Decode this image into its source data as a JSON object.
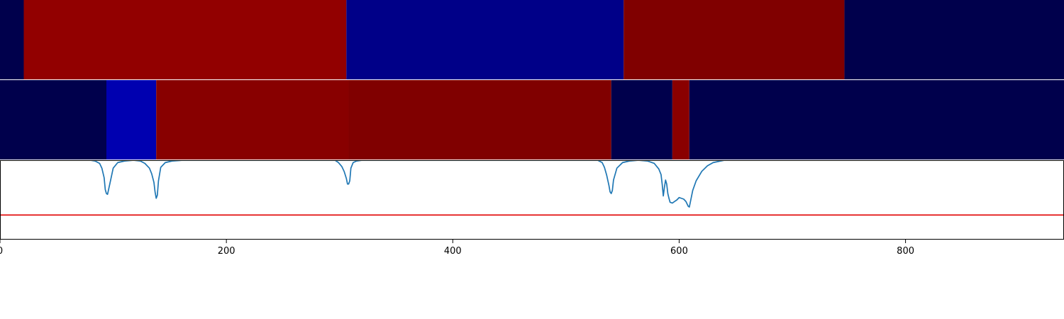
{
  "chart_data": [
    {
      "type": "heatmap",
      "subtype": "segment-band",
      "xlim": [
        0,
        940
      ],
      "segments": [
        {
          "start": 0,
          "end": 21,
          "color": "#00004c"
        },
        {
          "start": 21,
          "end": 306,
          "color": "#920000"
        },
        {
          "start": 306,
          "end": 551,
          "color": "#000088"
        },
        {
          "start": 551,
          "end": 746,
          "color": "#800000"
        },
        {
          "start": 746,
          "end": 940,
          "color": "#00004c"
        }
      ]
    },
    {
      "type": "heatmap",
      "subtype": "segment-band",
      "xlim": [
        0,
        940
      ],
      "segments": [
        {
          "start": 0,
          "end": 94,
          "color": "#00004c"
        },
        {
          "start": 94,
          "end": 138,
          "color": "#0000b0"
        },
        {
          "start": 138,
          "end": 308,
          "color": "#880000"
        },
        {
          "start": 308,
          "end": 540,
          "color": "#800000"
        },
        {
          "start": 540,
          "end": 594,
          "color": "#00004c"
        },
        {
          "start": 594,
          "end": 609,
          "color": "#8a0000"
        },
        {
          "start": 609,
          "end": 940,
          "color": "#00004c"
        }
      ]
    },
    {
      "type": "line",
      "xlim": [
        0,
        940
      ],
      "ylim": [
        0,
        1
      ],
      "x_ticks": [
        0,
        200,
        400,
        600,
        800
      ],
      "x_tick_labels": [
        "0",
        "200",
        "400",
        "600",
        "800"
      ],
      "threshold": {
        "value": 0.31,
        "color": "#e00000"
      },
      "series": [
        {
          "color": "#1f77b4",
          "x": [
            80,
            84,
            88,
            90,
            92,
            93,
            94,
            95,
            97,
            100,
            104,
            110,
            118,
            124,
            128,
            132,
            134,
            136,
            137,
            138,
            139,
            140,
            142,
            146,
            152,
            162,
            296,
            299,
            302,
            304,
            306,
            307,
            308,
            309,
            310,
            312,
            315,
            320,
            528,
            532,
            534,
            536,
            538,
            539,
            540,
            541,
            542,
            545,
            550,
            556,
            564,
            572,
            578,
            582,
            584,
            585,
            586,
            587,
            588,
            589,
            590,
            591,
            592,
            594,
            596,
            598,
            600,
            602,
            604,
            606,
            607,
            608,
            609,
            610,
            612,
            615,
            620,
            625,
            630,
            640
          ],
          "y": [
            1.0,
            0.99,
            0.96,
            0.9,
            0.78,
            0.63,
            0.58,
            0.57,
            0.7,
            0.9,
            0.97,
            0.99,
            1.0,
            0.99,
            0.96,
            0.9,
            0.83,
            0.72,
            0.6,
            0.52,
            0.56,
            0.74,
            0.91,
            0.97,
            0.99,
            1.0,
            1.0,
            0.97,
            0.92,
            0.86,
            0.77,
            0.7,
            0.7,
            0.74,
            0.9,
            0.97,
            0.99,
            1.0,
            1.0,
            0.97,
            0.91,
            0.81,
            0.68,
            0.6,
            0.58,
            0.62,
            0.75,
            0.9,
            0.97,
            0.99,
            1.0,
            0.99,
            0.96,
            0.89,
            0.82,
            0.7,
            0.55,
            0.66,
            0.75,
            0.7,
            0.58,
            0.52,
            0.47,
            0.46,
            0.48,
            0.5,
            0.53,
            0.52,
            0.51,
            0.48,
            0.45,
            0.42,
            0.41,
            0.48,
            0.62,
            0.74,
            0.86,
            0.93,
            0.97,
            1.0
          ]
        }
      ]
    }
  ]
}
